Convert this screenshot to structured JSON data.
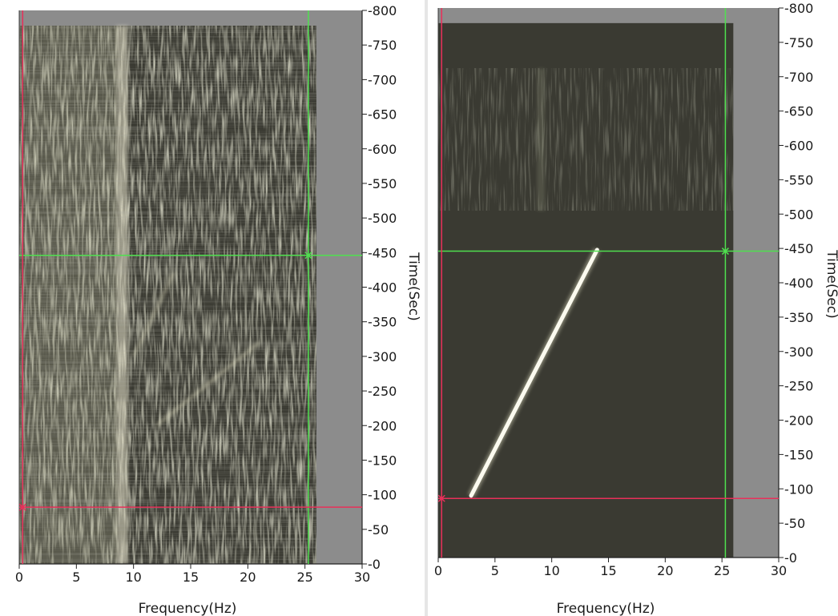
{
  "chart_data": [
    {
      "type": "heatmap",
      "xlabel": "Frequency(Hz)",
      "ylabel": "Time(Sec)",
      "xlim": [
        0,
        30
      ],
      "ylim": [
        0,
        800
      ],
      "x_ticks": [
        0,
        5,
        10,
        15,
        20,
        25,
        30
      ],
      "y_ticks": [
        0,
        50,
        100,
        150,
        200,
        250,
        300,
        350,
        400,
        450,
        500,
        550,
        600,
        650,
        700,
        750,
        800
      ],
      "data_extent": {
        "freq": [
          0,
          26
        ],
        "time": [
          0,
          778
        ]
      },
      "colormap": {
        "low": "#3a3a32",
        "high": "#f2efd8"
      },
      "description_values": {
        "bright_band_freq": [
          8.5,
          9.5
        ],
        "faint_chirp_1": {
          "start": [
            10,
            300
          ],
          "end": [
            13.5,
            420
          ]
        },
        "faint_chirp_2": {
          "start": [
            12,
            200
          ],
          "end": [
            21,
            320
          ]
        }
      },
      "cursors": {
        "green": {
          "freq": 25.3,
          "time": 446
        },
        "red": {
          "freq": 0.3,
          "time": 82
        }
      }
    },
    {
      "type": "heatmap",
      "xlabel": "Frequency(Hz)",
      "ylabel": "Time(Sec)",
      "xlim": [
        0,
        30
      ],
      "ylim": [
        0,
        800
      ],
      "x_ticks": [
        0,
        5,
        10,
        15,
        20,
        25,
        30
      ],
      "y_ticks": [
        0,
        50,
        100,
        150,
        200,
        250,
        300,
        350,
        400,
        450,
        500,
        550,
        600,
        650,
        700,
        750,
        800
      ],
      "data_extent": {
        "freq": [
          0,
          26
        ],
        "time": [
          0,
          778
        ]
      },
      "colormap": {
        "low": "#3a3a32",
        "high": "#f2efd8"
      },
      "noise_band_time": [
        505,
        712
      ],
      "chirp": {
        "x": [
          2.9,
          14.0
        ],
        "y": [
          90,
          448
        ]
      },
      "cursors": {
        "green": {
          "freq": 25.3,
          "time": 446
        },
        "red": {
          "freq": 0.3,
          "time": 86
        }
      }
    }
  ]
}
